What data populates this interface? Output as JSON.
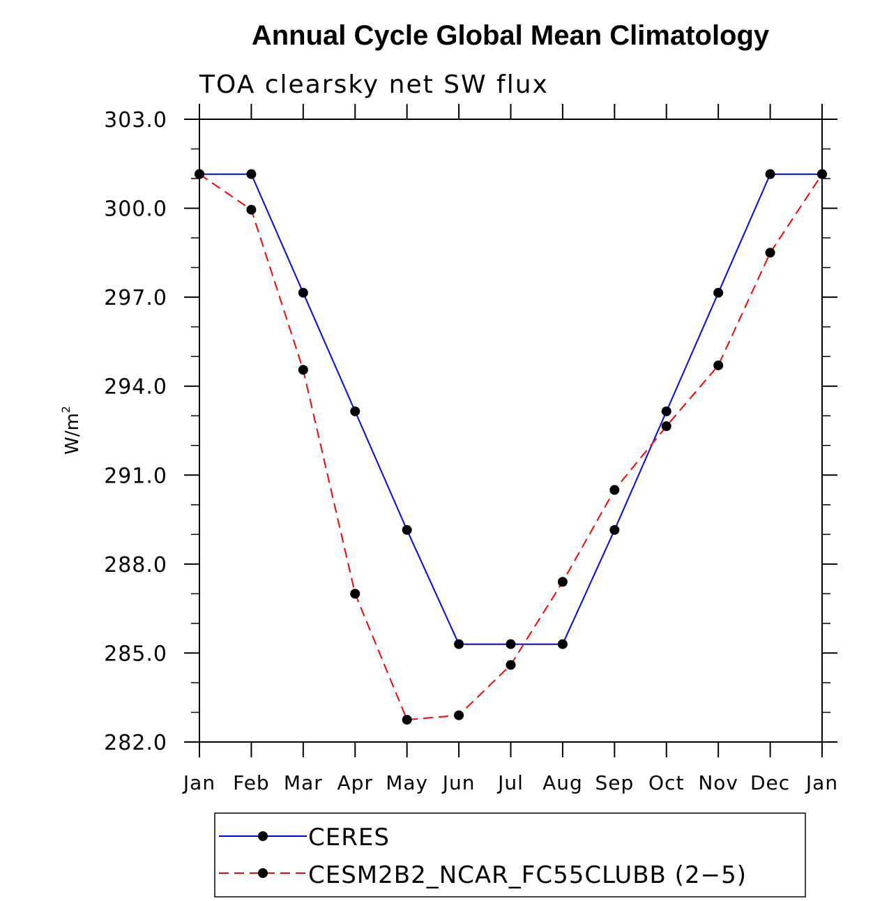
{
  "chart_data": {
    "type": "line",
    "title": "Annual Cycle Global Mean Climatology",
    "subtitle": "TOA clearsky net SW flux",
    "ylabel": "W/m",
    "ylabel_sup": "2",
    "xlabel": "",
    "ylim": [
      282.0,
      303.0
    ],
    "yticks": [
      "303.0",
      "300.0",
      "297.0",
      "294.0",
      "291.0",
      "288.0",
      "285.0",
      "282.0"
    ],
    "ytick_values": [
      303,
      300,
      297,
      294,
      291,
      288,
      285,
      282
    ],
    "categories": [
      "Jan",
      "Feb",
      "Mar",
      "Apr",
      "May",
      "Jun",
      "Jul",
      "Aug",
      "Sep",
      "Oct",
      "Nov",
      "Dec",
      "Jan"
    ],
    "series": [
      {
        "name": "CERES",
        "color": "#0000ff",
        "dash": "solid",
        "values": [
          301.15,
          301.15,
          297.15,
          293.15,
          289.15,
          285.3,
          285.3,
          285.3,
          289.15,
          293.15,
          297.15,
          301.15,
          301.15
        ]
      },
      {
        "name": "CESM2B2_NCAR_FC55CLUBB (2−5)",
        "color": "#ff0000",
        "dash": "dashed",
        "values": [
          301.15,
          299.95,
          294.55,
          287.0,
          282.75,
          282.9,
          284.6,
          287.4,
          290.5,
          292.65,
          294.7,
          298.5,
          301.15
        ]
      }
    ],
    "legend": {
      "position": "bottom",
      "entries": [
        "CERES",
        "CESM2B2_NCAR_FC55CLUBB (2−5)"
      ]
    }
  }
}
